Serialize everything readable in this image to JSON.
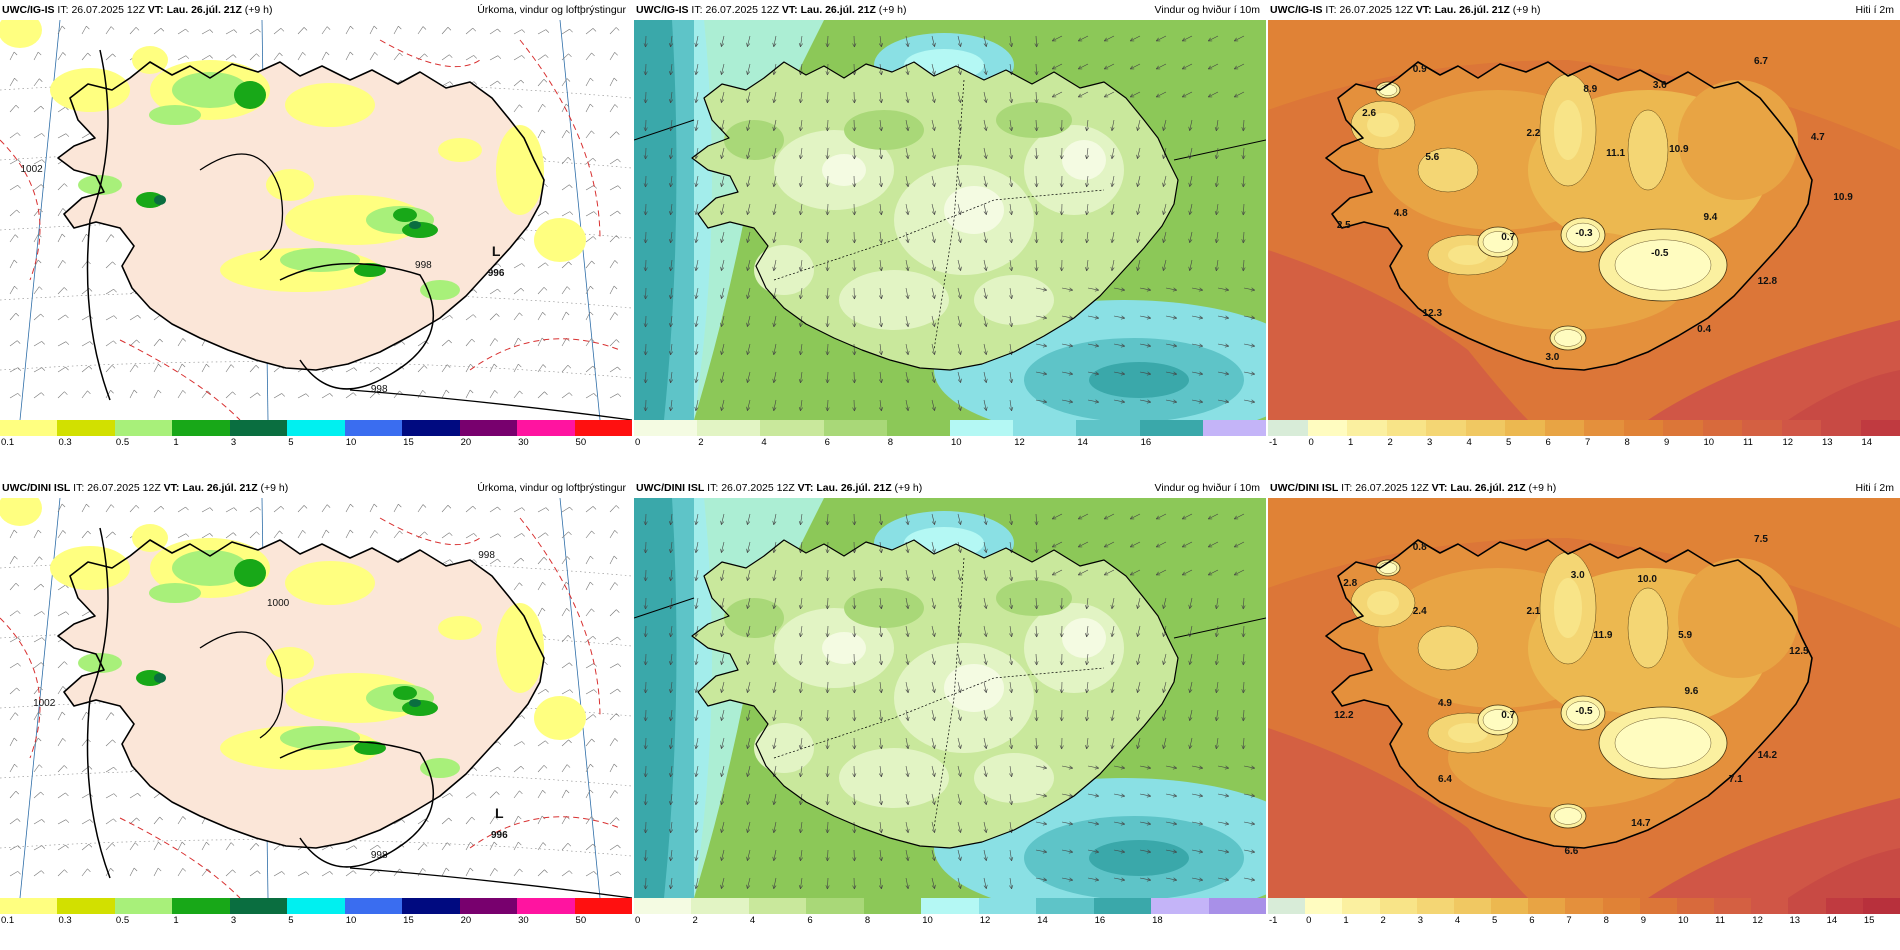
{
  "panels": [
    {
      "model": "UWC/IG-IS",
      "it_label": "IT:",
      "it_value": "26.07.2025 12Z",
      "vt_label": "VT:",
      "vt_value": "Lau. 26.júl. 21Z",
      "lead": "(+9 h)",
      "title": "Úrkoma, vindur og loftþrýstingur",
      "kind": "precip",
      "ticks": [
        "0.1",
        "0.3",
        "0.5",
        "1",
        "3",
        "5",
        "10",
        "15",
        "20",
        "30",
        "50"
      ],
      "colors": [
        "#ffff80",
        "#d2e000",
        "#a8f07a",
        "#18a818",
        "#0a6e40",
        "#00f0f0",
        "#3a6df0",
        "#000a80",
        "#78006e",
        "#ff14a0",
        "#ff1010"
      ],
      "labels": [
        {
          "text": "L",
          "xp": 0.785,
          "yp": 0.59,
          "bold": true
        },
        {
          "text": "996",
          "xp": 0.785,
          "yp": 0.64,
          "bold": true
        },
        {
          "text": "998",
          "xp": 0.67,
          "yp": 0.62,
          "bold": false
        },
        {
          "text": "998",
          "xp": 0.6,
          "yp": 0.93,
          "bold": false
        },
        {
          "text": "1002",
          "xp": 0.05,
          "yp": 0.38,
          "bold": false
        }
      ]
    },
    {
      "model": "UWC/IG-IS",
      "it_label": "IT:",
      "it_value": "26.07.2025 12Z",
      "vt_label": "VT:",
      "vt_value": "Lau. 26.júl. 21Z",
      "lead": "(+9 h)",
      "title": "Vindur og hviður í 10m",
      "kind": "wind",
      "ticks": [
        "0",
        "2",
        "4",
        "6",
        "8",
        "10",
        "12",
        "14",
        "16"
      ],
      "colors": [
        "#f4fbe2",
        "#e2f4c4",
        "#c9e89c",
        "#a9d878",
        "#8cc858",
        "#b4f8f4",
        "#8ae0e4",
        "#5ec4c8",
        "#3aa8aa",
        "#c4b4f8"
      ],
      "labels": []
    },
    {
      "model": "UWC/IG-IS",
      "it_label": "IT:",
      "it_value": "26.07.2025 12Z",
      "vt_label": "VT:",
      "vt_value": "Lau. 26.júl. 21Z",
      "lead": "(+9 h)",
      "title": "Hiti í 2m",
      "kind": "temp",
      "ticks": [
        "-1",
        "0",
        "1",
        "2",
        "3",
        "4",
        "5",
        "6",
        "7",
        "8",
        "9",
        "10",
        "11",
        "12",
        "13",
        "14"
      ],
      "colors": [
        "#d8ecd8",
        "#fffcc0",
        "#fbf0a0",
        "#f8e488",
        "#f4d674",
        "#f0c862",
        "#ecb850",
        "#e8a444",
        "#e4903c",
        "#e08236",
        "#dc7638",
        "#d86a3c",
        "#d46042",
        "#d05646",
        "#c84a44",
        "#c03a40"
      ],
      "labels": [
        {
          "text": "0.9",
          "xp": 0.24,
          "yp": 0.13
        },
        {
          "text": "6.7",
          "xp": 0.78,
          "yp": 0.11
        },
        {
          "text": "2.6",
          "xp": 0.16,
          "yp": 0.24
        },
        {
          "text": "8.9",
          "xp": 0.51,
          "yp": 0.18
        },
        {
          "text": "3.6",
          "xp": 0.62,
          "yp": 0.17
        },
        {
          "text": "2.2",
          "xp": 0.42,
          "yp": 0.29
        },
        {
          "text": "4.7",
          "xp": 0.87,
          "yp": 0.3
        },
        {
          "text": "5.6",
          "xp": 0.26,
          "yp": 0.35
        },
        {
          "text": "11.1",
          "xp": 0.55,
          "yp": 0.34
        },
        {
          "text": "10.9",
          "xp": 0.65,
          "yp": 0.33
        },
        {
          "text": "10.9",
          "xp": 0.91,
          "yp": 0.45
        },
        {
          "text": "4.8",
          "xp": 0.21,
          "yp": 0.49
        },
        {
          "text": "2.5",
          "xp": 0.12,
          "yp": 0.52
        },
        {
          "text": "0.7",
          "xp": 0.38,
          "yp": 0.55
        },
        {
          "text": "-0.3",
          "xp": 0.5,
          "yp": 0.54
        },
        {
          "text": "9.4",
          "xp": 0.7,
          "yp": 0.5
        },
        {
          "text": "-0.5",
          "xp": 0.62,
          "yp": 0.59
        },
        {
          "text": "12.8",
          "xp": 0.79,
          "yp": 0.66
        },
        {
          "text": "12.3",
          "xp": 0.26,
          "yp": 0.74
        },
        {
          "text": "0.4",
          "xp": 0.69,
          "yp": 0.78
        },
        {
          "text": "3.0",
          "xp": 0.45,
          "yp": 0.85
        }
      ]
    },
    {
      "model": "UWC/DINI ISL",
      "it_label": "IT:",
      "it_value": "26.07.2025 12Z",
      "vt_label": "VT:",
      "vt_value": "Lau. 26.júl. 21Z",
      "lead": "(+9 h)",
      "title": "Úrkoma, vindur og loftþrýstingur",
      "kind": "precip",
      "ticks": [
        "0.1",
        "0.3",
        "0.5",
        "1",
        "3",
        "5",
        "10",
        "15",
        "20",
        "30",
        "50"
      ],
      "colors": [
        "#ffff80",
        "#d2e000",
        "#a8f07a",
        "#18a818",
        "#0a6e40",
        "#00f0f0",
        "#3a6df0",
        "#000a80",
        "#78006e",
        "#ff14a0",
        "#ff1010"
      ],
      "labels": [
        {
          "text": "L",
          "xp": 0.79,
          "yp": 0.8,
          "bold": true
        },
        {
          "text": "996",
          "xp": 0.79,
          "yp": 0.85,
          "bold": true
        },
        {
          "text": "998",
          "xp": 0.6,
          "yp": 0.9,
          "bold": false
        },
        {
          "text": "1000",
          "xp": 0.44,
          "yp": 0.27,
          "bold": false
        },
        {
          "text": "1002",
          "xp": 0.07,
          "yp": 0.52,
          "bold": false
        },
        {
          "text": "998",
          "xp": 0.77,
          "yp": 0.15,
          "bold": false
        }
      ]
    },
    {
      "model": "UWC/DINI ISL",
      "it_label": "IT:",
      "it_value": "26.07.2025 12Z",
      "vt_label": "VT:",
      "vt_value": "Lau. 26.júl. 21Z",
      "lead": "(+9 h)",
      "title": "Vindur og hviður í 10m",
      "kind": "wind",
      "ticks": [
        "0",
        "2",
        "4",
        "6",
        "8",
        "10",
        "12",
        "14",
        "16",
        "18"
      ],
      "colors": [
        "#f4fbe2",
        "#e2f4c4",
        "#c9e89c",
        "#a9d878",
        "#8cc858",
        "#b4f8f4",
        "#8ae0e4",
        "#5ec4c8",
        "#3aa8aa",
        "#c4b4f8",
        "#a890e8"
      ],
      "labels": []
    },
    {
      "model": "UWC/DINI ISL",
      "it_label": "IT:",
      "it_value": "26.07.2025 12Z",
      "vt_label": "VT:",
      "vt_value": "Lau. 26.júl. 21Z",
      "lead": "(+9 h)",
      "title": "Hiti í 2m",
      "kind": "temp",
      "ticks": [
        "-1",
        "0",
        "1",
        "2",
        "3",
        "4",
        "5",
        "6",
        "7",
        "8",
        "9",
        "10",
        "11",
        "12",
        "13",
        "14",
        "15"
      ],
      "colors": [
        "#d8ecd8",
        "#fffcc0",
        "#fbf0a0",
        "#f8e488",
        "#f4d674",
        "#f0c862",
        "#ecb850",
        "#e8a444",
        "#e4903c",
        "#e08236",
        "#dc7638",
        "#d86a3c",
        "#d46042",
        "#d05646",
        "#c84a44",
        "#c03a40",
        "#b8303c"
      ],
      "labels": [
        {
          "text": "0.8",
          "xp": 0.24,
          "yp": 0.13
        },
        {
          "text": "7.5",
          "xp": 0.78,
          "yp": 0.11
        },
        {
          "text": "2.8",
          "xp": 0.13,
          "yp": 0.22
        },
        {
          "text": "3.0",
          "xp": 0.49,
          "yp": 0.2
        },
        {
          "text": "10.0",
          "xp": 0.6,
          "yp": 0.21
        },
        {
          "text": "2.4",
          "xp": 0.24,
          "yp": 0.29
        },
        {
          "text": "2.1",
          "xp": 0.42,
          "yp": 0.29
        },
        {
          "text": "11.9",
          "xp": 0.53,
          "yp": 0.35
        },
        {
          "text": "5.9",
          "xp": 0.66,
          "yp": 0.35
        },
        {
          "text": "12.5",
          "xp": 0.84,
          "yp": 0.39
        },
        {
          "text": "9.6",
          "xp": 0.67,
          "yp": 0.49
        },
        {
          "text": "4.9",
          "xp": 0.28,
          "yp": 0.52
        },
        {
          "text": "12.2",
          "xp": 0.12,
          "yp": 0.55
        },
        {
          "text": "0.7",
          "xp": 0.38,
          "yp": 0.55
        },
        {
          "text": "-0.5",
          "xp": 0.5,
          "yp": 0.54
        },
        {
          "text": "14.2",
          "xp": 0.79,
          "yp": 0.65
        },
        {
          "text": "6.4",
          "xp": 0.28,
          "yp": 0.71
        },
        {
          "text": "7.1",
          "xp": 0.74,
          "yp": 0.71
        },
        {
          "text": "14.7",
          "xp": 0.59,
          "yp": 0.82
        },
        {
          "text": "6.6",
          "xp": 0.48,
          "yp": 0.89
        }
      ]
    }
  ]
}
